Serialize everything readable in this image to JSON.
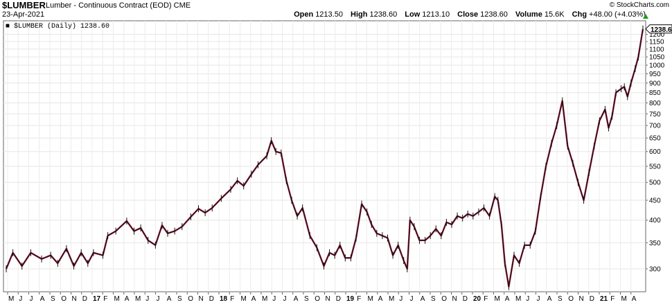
{
  "header": {
    "symbol": "$LUMBER",
    "description": "Lumber - Continuous Contract (EOD)",
    "exchange": "CME",
    "date": "23-Apr-2021",
    "open_label": "Open",
    "open": "1213.50",
    "high_label": "High",
    "high": "1238.60",
    "low_label": "Low",
    "low": "1213.10",
    "close_label": "Close",
    "close": "1238.60",
    "volume_label": "Volume",
    "volume": "15.6K",
    "chg_label": "Chg",
    "chg": "+48.00 (+4.03%)",
    "brand": "© StockCharts.com",
    "up_color": "#1a9e1a"
  },
  "chart_data": {
    "type": "line",
    "legend": "$LUMBER (Daily) 1238.60",
    "scale": "log",
    "ylim": [
      262,
      1300
    ],
    "y_ticks": [
      300,
      350,
      400,
      450,
      500,
      550,
      600,
      650,
      700,
      750,
      800,
      850,
      900,
      950,
      1000,
      1050,
      1100,
      1150,
      1200
    ],
    "last_value_label": "1238.6",
    "x_tick_labels": [
      "M",
      "J",
      "J",
      "A",
      "S",
      "O",
      "N",
      "D",
      "17",
      "F",
      "M",
      "A",
      "M",
      "J",
      "J",
      "A",
      "S",
      "O",
      "N",
      "D",
      "18",
      "F",
      "M",
      "A",
      "M",
      "J",
      "J",
      "A",
      "S",
      "O",
      "N",
      "D",
      "19",
      "F",
      "M",
      "A",
      "M",
      "J",
      "J",
      "A",
      "S",
      "O",
      "N",
      "D",
      "20",
      "F",
      "M",
      "A",
      "M",
      "J",
      "J",
      "A",
      "S",
      "O",
      "N",
      "D",
      "21",
      "F",
      "M",
      "A"
    ],
    "x_tick_bold": [
      "17",
      "18",
      "19",
      "20",
      "21"
    ],
    "series": [
      {
        "values": [
          [
            "2016-05-01",
            300
          ],
          [
            "2016-05-20",
            330
          ],
          [
            "2016-06-15",
            305
          ],
          [
            "2016-07-10",
            330
          ],
          [
            "2016-08-10",
            318
          ],
          [
            "2016-09-05",
            325
          ],
          [
            "2016-09-25",
            310
          ],
          [
            "2016-10-20",
            338
          ],
          [
            "2016-11-10",
            305
          ],
          [
            "2016-12-01",
            330
          ],
          [
            "2016-12-20",
            310
          ],
          [
            "2017-01-05",
            330
          ],
          [
            "2017-02-01",
            325
          ],
          [
            "2017-02-15",
            365
          ],
          [
            "2017-03-10",
            375
          ],
          [
            "2017-04-10",
            398
          ],
          [
            "2017-05-01",
            375
          ],
          [
            "2017-05-20",
            382
          ],
          [
            "2017-06-10",
            355
          ],
          [
            "2017-07-01",
            345
          ],
          [
            "2017-07-20",
            388
          ],
          [
            "2017-08-05",
            370
          ],
          [
            "2017-08-25",
            375
          ],
          [
            "2017-09-15",
            385
          ],
          [
            "2017-10-10",
            408
          ],
          [
            "2017-11-01",
            428
          ],
          [
            "2017-11-20",
            418
          ],
          [
            "2017-12-10",
            430
          ],
          [
            "2018-01-05",
            455
          ],
          [
            "2018-02-01",
            480
          ],
          [
            "2018-02-20",
            505
          ],
          [
            "2018-03-10",
            490
          ],
          [
            "2018-04-01",
            525
          ],
          [
            "2018-04-20",
            555
          ],
          [
            "2018-05-15",
            585
          ],
          [
            "2018-05-28",
            640
          ],
          [
            "2018-06-10",
            600
          ],
          [
            "2018-06-25",
            595
          ],
          [
            "2018-07-10",
            505
          ],
          [
            "2018-07-25",
            450
          ],
          [
            "2018-08-10",
            410
          ],
          [
            "2018-08-25",
            430
          ],
          [
            "2018-09-15",
            365
          ],
          [
            "2018-10-05",
            340
          ],
          [
            "2018-10-25",
            305
          ],
          [
            "2018-11-10",
            330
          ],
          [
            "2018-11-25",
            325
          ],
          [
            "2018-12-10",
            345
          ],
          [
            "2018-12-25",
            320
          ],
          [
            "2019-01-10",
            320
          ],
          [
            "2019-01-25",
            360
          ],
          [
            "2019-02-10",
            440
          ],
          [
            "2019-02-25",
            420
          ],
          [
            "2019-03-10",
            390
          ],
          [
            "2019-03-25",
            370
          ],
          [
            "2019-04-10",
            365
          ],
          [
            "2019-04-25",
            360
          ],
          [
            "2019-05-10",
            325
          ],
          [
            "2019-05-25",
            345
          ],
          [
            "2019-06-10",
            315
          ],
          [
            "2019-06-20",
            300
          ],
          [
            "2019-06-28",
            400
          ],
          [
            "2019-07-10",
            385
          ],
          [
            "2019-07-25",
            355
          ],
          [
            "2019-08-10",
            355
          ],
          [
            "2019-08-25",
            365
          ],
          [
            "2019-09-10",
            380
          ],
          [
            "2019-09-25",
            365
          ],
          [
            "2019-10-10",
            395
          ],
          [
            "2019-10-25",
            390
          ],
          [
            "2019-11-10",
            410
          ],
          [
            "2019-11-25",
            405
          ],
          [
            "2019-12-10",
            415
          ],
          [
            "2019-12-25",
            410
          ],
          [
            "2020-01-10",
            420
          ],
          [
            "2020-01-25",
            430
          ],
          [
            "2020-02-10",
            410
          ],
          [
            "2020-02-25",
            460
          ],
          [
            "2020-03-05",
            450
          ],
          [
            "2020-03-15",
            390
          ],
          [
            "2020-03-25",
            310
          ],
          [
            "2020-04-05",
            270
          ],
          [
            "2020-04-20",
            325
          ],
          [
            "2020-05-05",
            310
          ],
          [
            "2020-05-20",
            345
          ],
          [
            "2020-06-05",
            345
          ],
          [
            "2020-06-20",
            375
          ],
          [
            "2020-07-05",
            460
          ],
          [
            "2020-07-20",
            550
          ],
          [
            "2020-08-05",
            630
          ],
          [
            "2020-08-20",
            700
          ],
          [
            "2020-09-05",
            810
          ],
          [
            "2020-09-20",
            620
          ],
          [
            "2020-10-05",
            560
          ],
          [
            "2020-10-20",
            500
          ],
          [
            "2020-11-05",
            450
          ],
          [
            "2020-11-20",
            530
          ],
          [
            "2020-12-05",
            620
          ],
          [
            "2020-12-20",
            720
          ],
          [
            "2021-01-05",
            770
          ],
          [
            "2021-01-15",
            690
          ],
          [
            "2021-01-25",
            740
          ],
          [
            "2021-02-05",
            850
          ],
          [
            "2021-02-20",
            870
          ],
          [
            "2021-03-01",
            880
          ],
          [
            "2021-03-10",
            830
          ],
          [
            "2021-03-20",
            900
          ],
          [
            "2021-04-01",
            980
          ],
          [
            "2021-04-10",
            1050
          ],
          [
            "2021-04-23",
            1238.6
          ]
        ]
      }
    ]
  }
}
